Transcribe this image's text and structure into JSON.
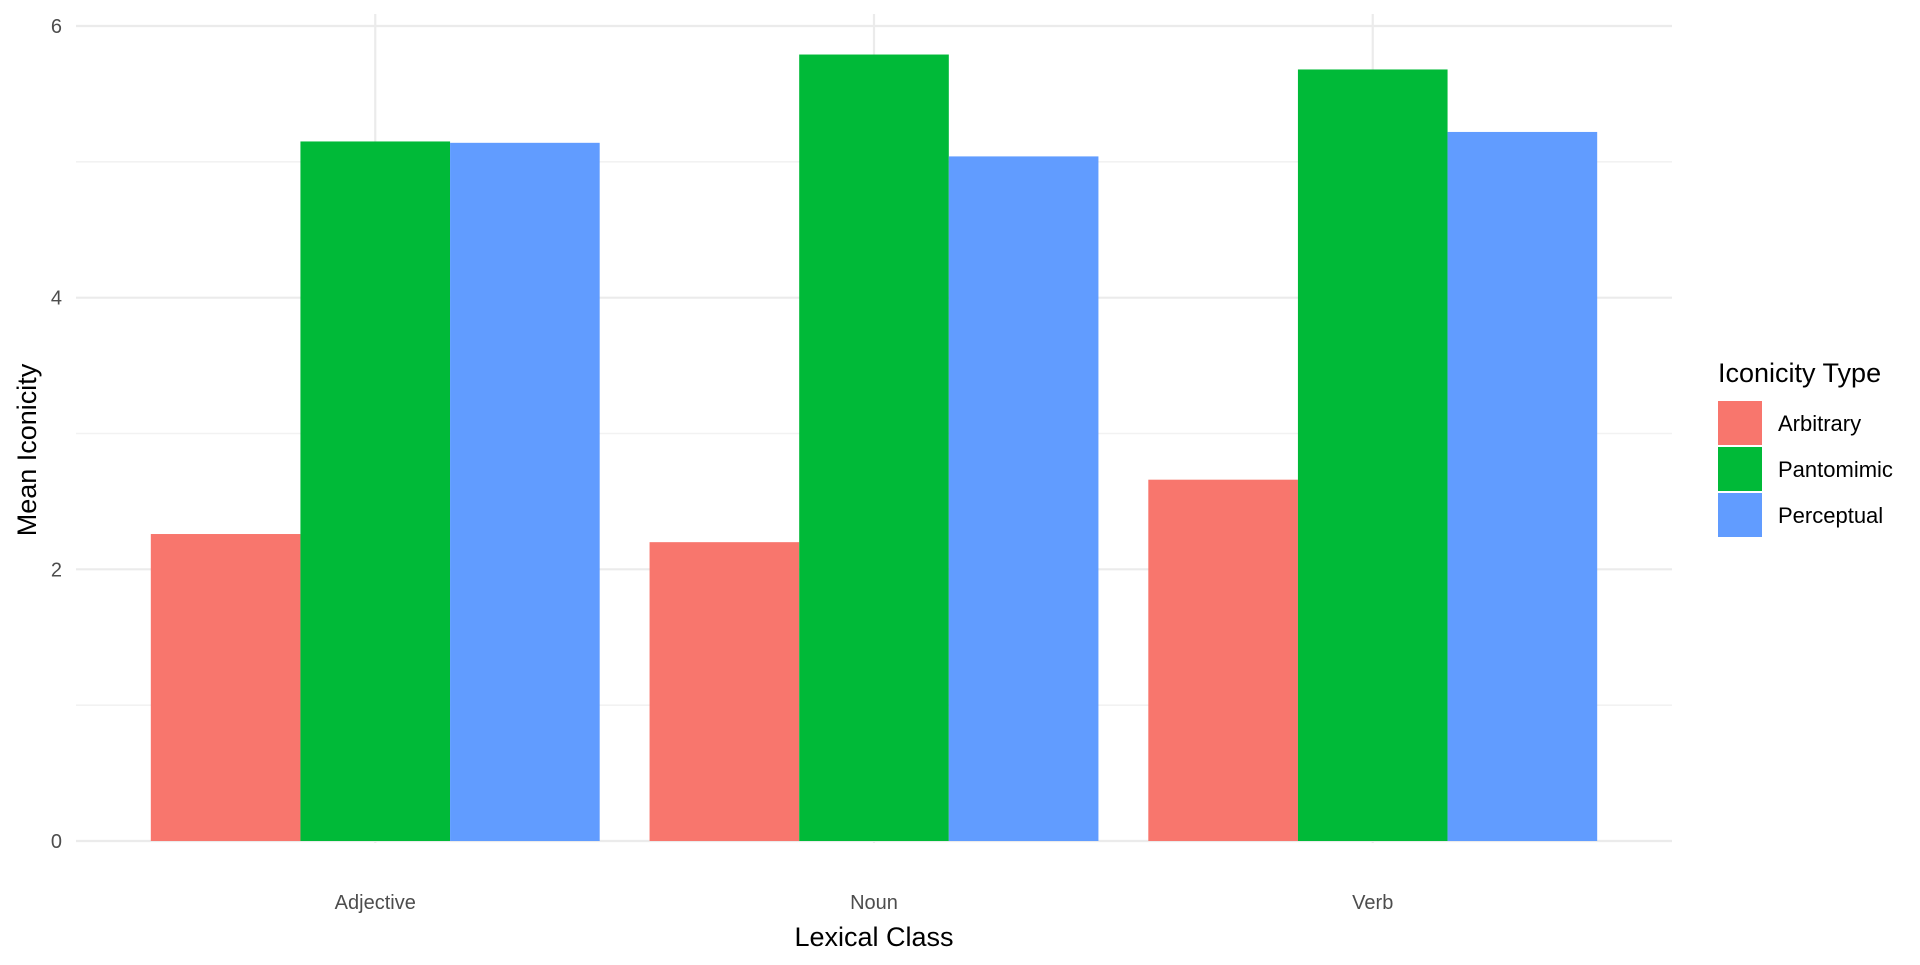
{
  "chart_data": {
    "type": "bar",
    "xlabel": "Lexical Class",
    "ylabel": "Mean Iconicity",
    "categories": [
      "Adjective",
      "Noun",
      "Verb"
    ],
    "series": [
      {
        "name": "Arbitrary",
        "color": "#F8766D",
        "values": [
          2.26,
          2.2,
          2.66
        ]
      },
      {
        "name": "Pantomimic",
        "color": "#00BA38",
        "values": [
          5.15,
          5.79,
          5.68
        ]
      },
      {
        "name": "Perceptual",
        "color": "#619CFF",
        "values": [
          5.14,
          5.04,
          5.22
        ]
      }
    ],
    "ylim": [
      0,
      6
    ],
    "yticks": [
      0,
      2,
      4,
      6
    ],
    "grid": true,
    "legend": {
      "title": "Iconicity Type",
      "position": "right"
    }
  }
}
